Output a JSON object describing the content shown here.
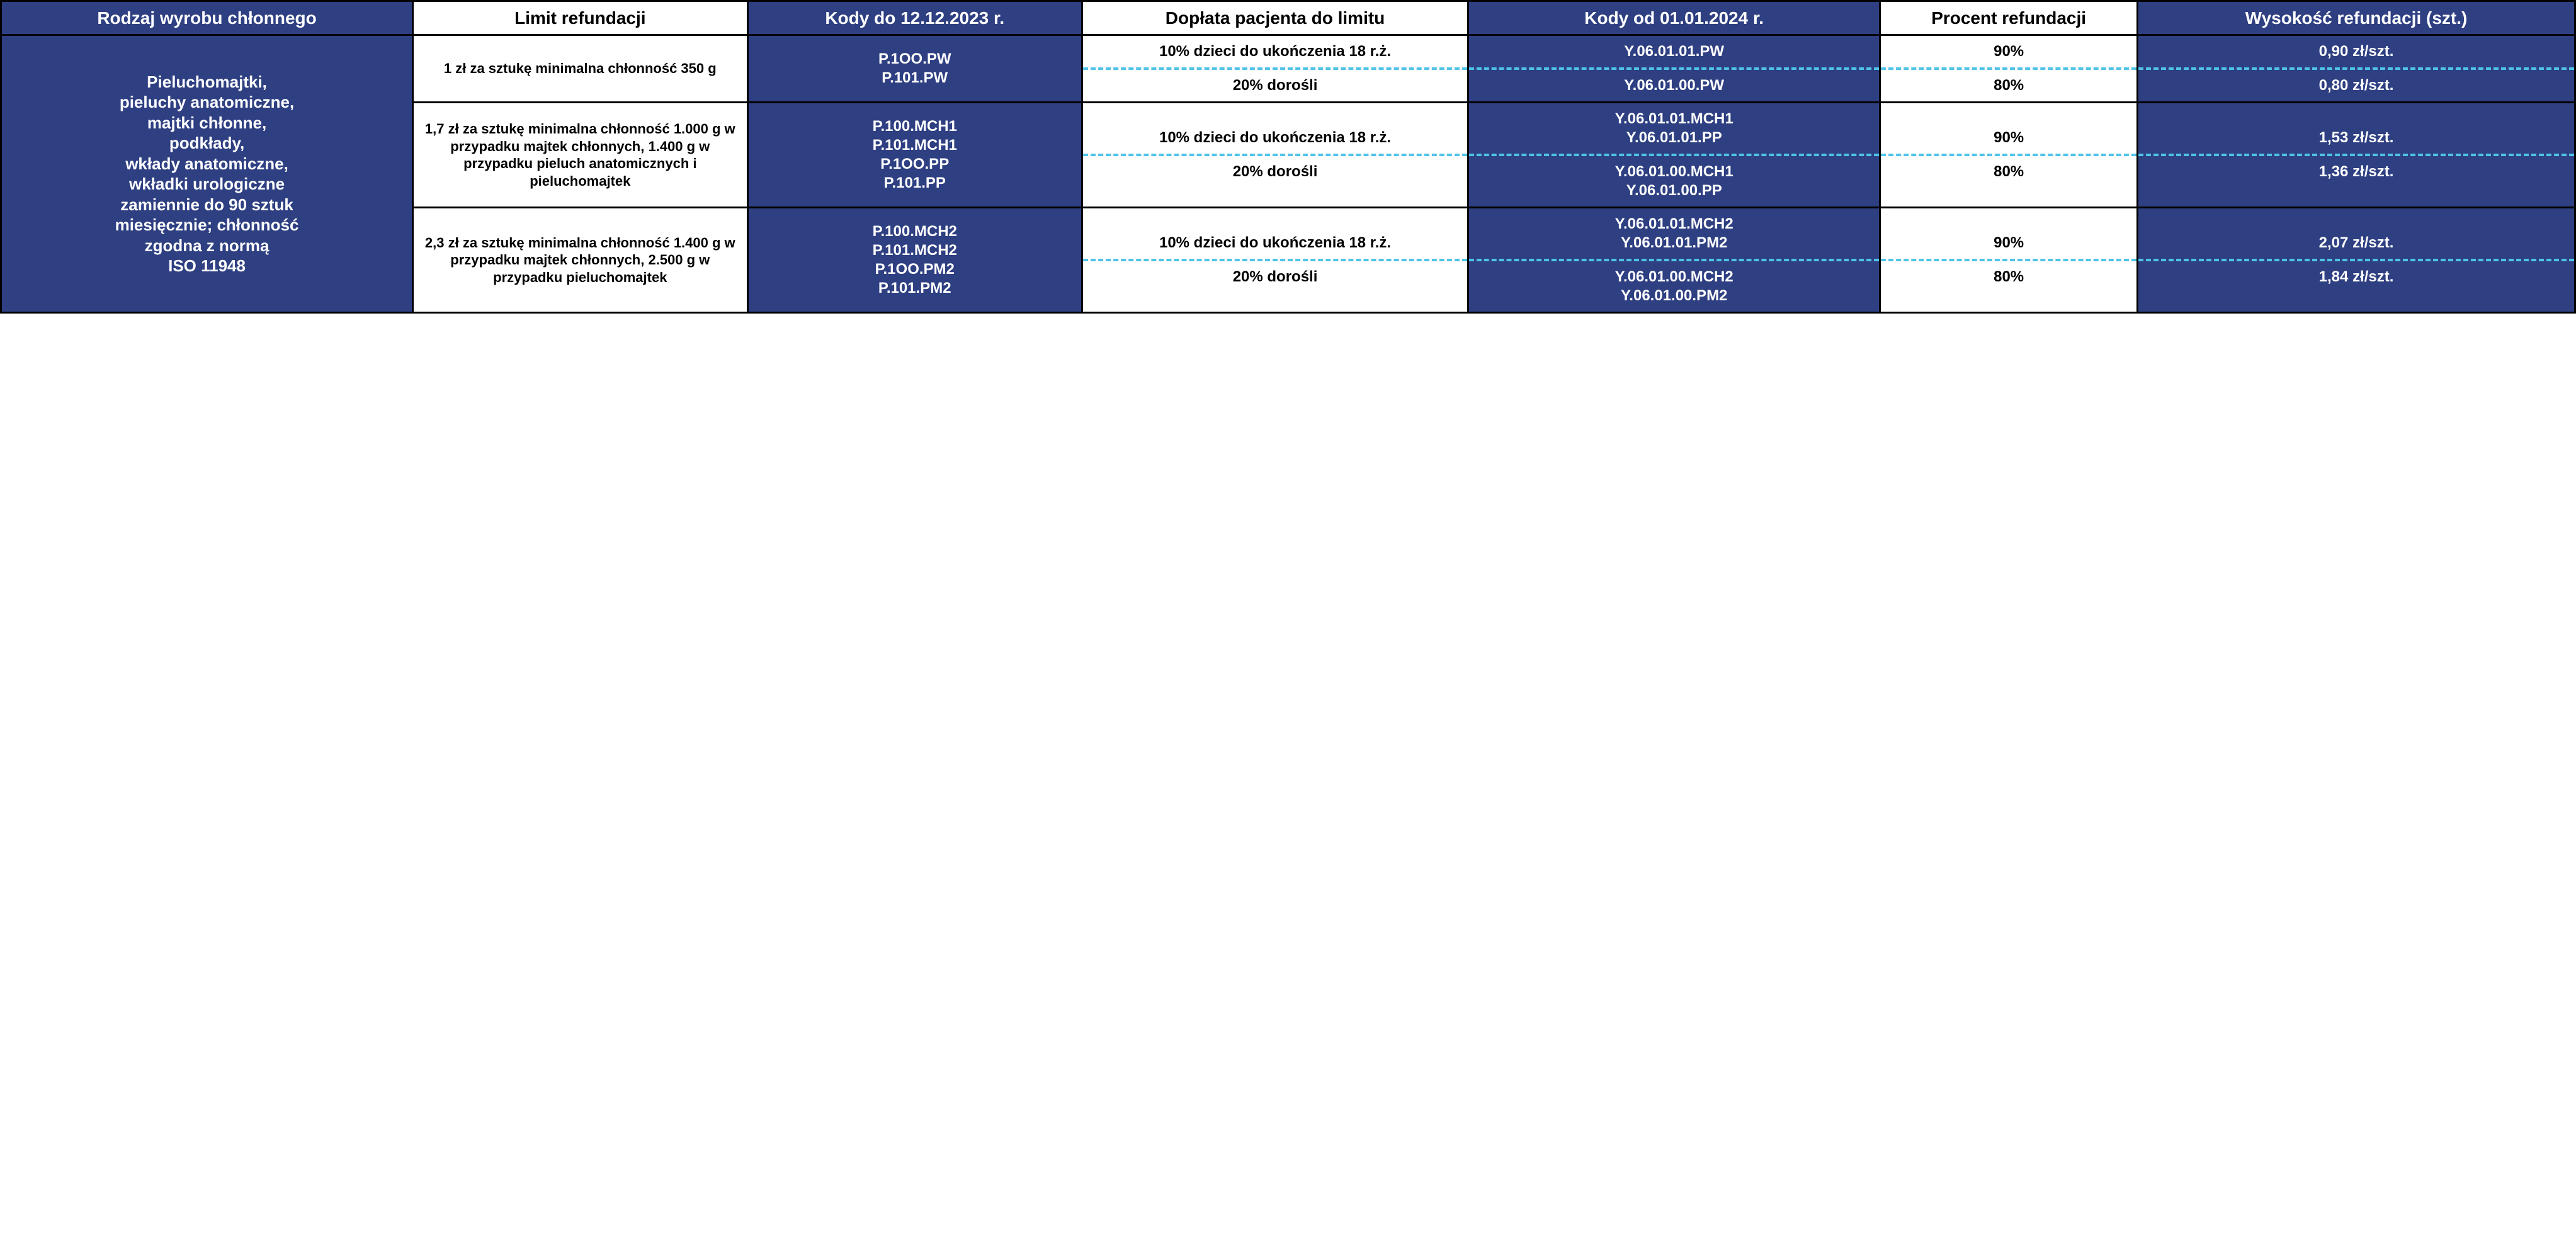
{
  "colors": {
    "blue_bg": "#2e3f82",
    "white_bg": "#ffffff",
    "text_light": "#ffffff",
    "text_dark": "#000000",
    "border": "#000000",
    "dash": "#4fc3e8"
  },
  "col_widths_pct": [
    16,
    13,
    13,
    15,
    16,
    10,
    17
  ],
  "headers": {
    "c0": "Rodzaj wyrobu chłonnego",
    "c1": "Limit refundacji",
    "c2": "Kody do 12.12.2023 r.",
    "c3": "Dopłata pacjenta do limitu",
    "c4": "Kody od 01.01.2024 r.",
    "c5": "Procent refundacji",
    "c6": "Wysokość refundacji (szt.)"
  },
  "rodzaj": "Pieluchomajtki,\npieluchy anatomiczne,\nmajtki chłonne,\npodkłady,\nwkłady anatomiczne,\nwkładki urologiczne\nzamiennie do 90 sztuk\nmiesięcznie; chłonność\nzgodna z normą\nISO 11948",
  "groups": [
    {
      "limit": "1 zł za sztukę minimalna chłonność 350 g",
      "kody_old": "P.1OO.PW\nP.101.PW",
      "rows": [
        {
          "doplata": "10% dzieci do ukończenia 18 r.ż.",
          "kody_new": "Y.06.01.01.PW",
          "procent": "90%",
          "wysokosc": "0,90 zł/szt."
        },
        {
          "doplata": "20% dorośli",
          "kody_new": "Y.06.01.00.PW",
          "procent": "80%",
          "wysokosc": "0,80 zł/szt."
        }
      ]
    },
    {
      "limit": "1,7 zł za sztukę minimalna chłonność 1.000 g w przypadku majtek chłonnych, 1.400 g w przypadku pieluch anatomicznych i pieluchomajtek",
      "kody_old": "P.100.MCH1\nP.101.MCH1\nP.1OO.PP\nP.101.PP",
      "rows": [
        {
          "doplata": "10% dzieci do ukończenia 18 r.ż.",
          "kody_new": "Y.06.01.01.MCH1\nY.06.01.01.PP",
          "procent": "90%",
          "wysokosc": "1,53 zł/szt."
        },
        {
          "doplata": "20% dorośli",
          "kody_new": "Y.06.01.00.MCH1\nY.06.01.00.PP",
          "procent": "80%",
          "wysokosc": "1,36 zł/szt."
        }
      ]
    },
    {
      "limit": "2,3 zł za sztukę minimalna chłonność 1.400 g w przypadku majtek chłonnych, 2.500 g w przypadku pieluchomajtek",
      "kody_old": "P.100.MCH2\nP.101.MCH2\nP.1OO.PM2\nP.101.PM2",
      "rows": [
        {
          "doplata": "10% dzieci do ukończenia 18 r.ż.",
          "kody_new": "Y.06.01.01.MCH2\nY.06.01.01.PM2",
          "procent": "90%",
          "wysokosc": "2,07 zł/szt."
        },
        {
          "doplata": "20% dorośli",
          "kody_new": "Y.06.01.00.MCH2\nY.06.01.00.PM2",
          "procent": "80%",
          "wysokosc": "1,84 zł/szt."
        }
      ]
    }
  ]
}
